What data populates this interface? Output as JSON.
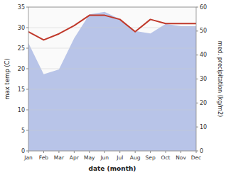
{
  "chart_data": {
    "type": "line",
    "categories": [
      "Jan",
      "Feb",
      "Mar",
      "Apr",
      "May",
      "Jun",
      "Jul",
      "Aug",
      "Sep",
      "Oct",
      "Nov",
      "Dec"
    ],
    "xlabel": "date (month)",
    "ylabel": "max temp (C)",
    "y2label": "med. precipitation (kg/m2)",
    "ylim": [
      0,
      35
    ],
    "yticks": [
      0,
      5,
      10,
      15,
      20,
      25,
      30,
      35
    ],
    "y2lim": [
      0,
      60
    ],
    "y2ticks": [
      0,
      10,
      20,
      30,
      40,
      50,
      60
    ],
    "grid": true,
    "series": [
      {
        "type": "area",
        "axis": "y2",
        "color": "#b8c4e8",
        "values": [
          45,
          32,
          34,
          47,
          57,
          58,
          55,
          50,
          49,
          53,
          52,
          52
        ]
      },
      {
        "type": "line",
        "color": "#c0392b",
        "values": [
          29.0,
          27.0,
          28.5,
          30.5,
          33.0,
          33.0,
          32.0,
          29.0,
          32.0,
          31.0,
          31.0,
          31.0
        ]
      }
    ]
  }
}
